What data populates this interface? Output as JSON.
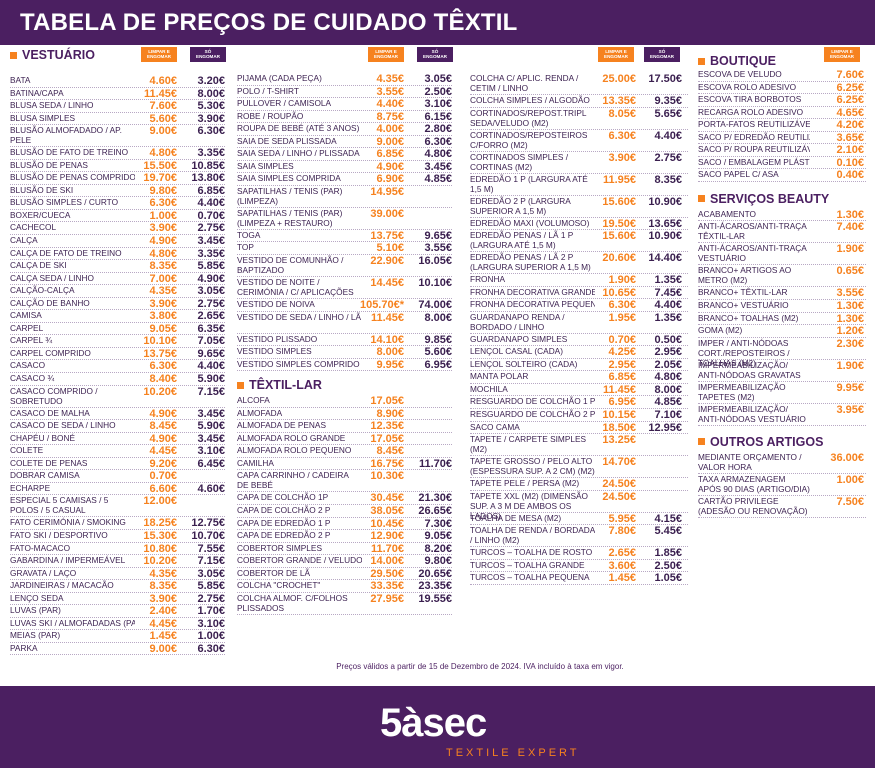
{
  "title": "TABELA DE PREÇOS DE CUIDADO TÊXTIL",
  "badge_clean": "LIMPAR E\nENGOMAR",
  "badge_iron": "SÓ\nENGOMAR",
  "validity": "Preços válidos a partir de 15 de Dezembro de 2024. IVA incluído à taxa em vigor.",
  "brand": {
    "logo": "5àsec",
    "tagline": "TEXTILE EXPERT"
  },
  "col1": {
    "section": "VESTUÁRIO",
    "items": [
      {
        "n": "BATA",
        "p1": "4.60€",
        "p2": "3.20€"
      },
      {
        "n": "BATINA/CAPA",
        "p1": "11.45€",
        "p2": "8.00€"
      },
      {
        "n": "BLUSA SEDA / LINHO",
        "p1": "7.60€",
        "p2": "5.30€"
      },
      {
        "n": "BLUSA SIMPLES",
        "p1": "5.60€",
        "p2": "3.90€"
      },
      {
        "n": "BLUSÃO ALMOFADADO / AP. PELE",
        "p1": "9.00€",
        "p2": "6.30€",
        "tall": true
      },
      {
        "n": "BLUSÃO DE FATO DE TREINO",
        "p1": "4.80€",
        "p2": "3.35€"
      },
      {
        "n": "BLUSÃO DE PENAS",
        "p1": "15.50€",
        "p2": "10.85€"
      },
      {
        "n": "BLUSÃO DE PENAS COMPRIDO",
        "p1": "19.70€",
        "p2": "13.80€"
      },
      {
        "n": "BLUSÃO DE SKI",
        "p1": "9.80€",
        "p2": "6.85€"
      },
      {
        "n": "BLUSÃO SIMPLES / CURTO",
        "p1": "6.30€",
        "p2": "4.40€"
      },
      {
        "n": "BOXER/CUECA",
        "p1": "1.00€",
        "p2": "0.70€"
      },
      {
        "n": "CACHECOL",
        "p1": "3.90€",
        "p2": "2.75€"
      },
      {
        "n": "CALÇA",
        "p1": "4.90€",
        "p2": "3.45€"
      },
      {
        "n": "CALÇA DE FATO DE TREINO",
        "p1": "4.80€",
        "p2": "3.35€"
      },
      {
        "n": "CALÇA DE SKI",
        "p1": "8.35€",
        "p2": "5.85€"
      },
      {
        "n": "CALÇA SEDA / LINHO",
        "p1": "7.00€",
        "p2": "4.90€"
      },
      {
        "n": "CALÇÃO-CALÇA",
        "p1": "4.35€",
        "p2": "3.05€"
      },
      {
        "n": "CALÇÃO DE BANHO",
        "p1": "3.90€",
        "p2": "2.75€"
      },
      {
        "n": "CAMISA",
        "p1": "3.80€",
        "p2": "2.65€"
      },
      {
        "n": "CARPEL",
        "p1": "9.05€",
        "p2": "6.35€"
      },
      {
        "n": "CARPEL ¾",
        "p1": "10.10€",
        "p2": "7.05€"
      },
      {
        "n": "CARPEL COMPRIDO",
        "p1": "13.75€",
        "p2": "9.65€"
      },
      {
        "n": "CASACO",
        "p1": "6.30€",
        "p2": "4.40€"
      },
      {
        "n": "CASACO ¾",
        "p1": "8.40€",
        "p2": "5.90€"
      },
      {
        "n": "CASACO COMPRIDO / SOBRETUDO",
        "p1": "10.20€",
        "p2": "7.15€",
        "tall": true
      },
      {
        "n": "CASACO DE MALHA",
        "p1": "4.90€",
        "p2": "3.45€"
      },
      {
        "n": "CASACO DE SEDA / LINHO",
        "p1": "8.45€",
        "p2": "5.90€"
      },
      {
        "n": "CHAPÉU / BONÉ",
        "p1": "4.90€",
        "p2": "3.45€"
      },
      {
        "n": "COLETE",
        "p1": "4.45€",
        "p2": "3.10€"
      },
      {
        "n": "COLETE DE PENAS",
        "p1": "9.20€",
        "p2": "6.45€"
      },
      {
        "n": "DOBRAR CAMISA",
        "p1": "0.70€",
        "p2": ""
      },
      {
        "n": "ECHARPE",
        "p1": "6.60€",
        "p2": "4.60€"
      },
      {
        "n": "ESPECIAL 5 CAMISAS / 5 POLOS / 5 CASUAL",
        "p1": "12.00€",
        "p2": "",
        "tall": true
      },
      {
        "n": "FATO CERIMÓNIA / SMOKING",
        "p1": "18.25€",
        "p2": "12.75€"
      },
      {
        "n": "FATO SKI / DESPORTIVO",
        "p1": "15.30€",
        "p2": "10.70€"
      },
      {
        "n": "FATO-MACACO",
        "p1": "10.80€",
        "p2": "7.55€"
      },
      {
        "n": "GABARDINA / IMPERMEÁVEL",
        "p1": "10.20€",
        "p2": "7.15€"
      },
      {
        "n": "GRAVATA / LAÇO",
        "p1": "4.35€",
        "p2": "3.05€"
      },
      {
        "n": "JARDINEIRAS / MACACÃO",
        "p1": "8.35€",
        "p2": "5.85€"
      },
      {
        "n": "LENÇO SEDA",
        "p1": "3.90€",
        "p2": "2.75€"
      },
      {
        "n": "LUVAS (par)",
        "p1": "2.40€",
        "p2": "1.70€"
      },
      {
        "n": "LUVAS SKI / ALMOFADADAS (par)",
        "p1": "4.45€",
        "p2": "3.10€"
      },
      {
        "n": "MEIAS (par)",
        "p1": "1.45€",
        "p2": "1.00€"
      },
      {
        "n": "PARKA",
        "p1": "9.00€",
        "p2": "6.30€"
      }
    ]
  },
  "col2": {
    "items": [
      {
        "n": "PIJAMA (cada peça)",
        "p1": "4.35€",
        "p2": "3.05€"
      },
      {
        "n": "POLO / T-SHIRT",
        "p1": "3.55€",
        "p2": "2.50€"
      },
      {
        "n": "PULLOVER / CAMISOLA",
        "p1": "4.40€",
        "p2": "3.10€"
      },
      {
        "n": "ROBE / ROUPÃO",
        "p1": "8.75€",
        "p2": "6.15€"
      },
      {
        "n": "ROUPA DE BEBÉ (até 3 anos)",
        "p1": "4.00€",
        "p2": "2.80€"
      },
      {
        "n": "SAIA DE SEDA PLISSADA",
        "p1": "9.00€",
        "p2": "6.30€"
      },
      {
        "n": "SAIA SEDA / LINHO / PLISSADA",
        "p1": "6.85€",
        "p2": "4.80€"
      },
      {
        "n": "SAIA SIMPLES",
        "p1": "4.90€",
        "p2": "3.45€"
      },
      {
        "n": "SAIA SIMPLES COMPRIDA",
        "p1": "6.90€",
        "p2": "4.85€"
      },
      {
        "n": "SAPATILHAS / TENIS (par) (limpeza)",
        "p1": "14.95€",
        "p2": "",
        "tall": true
      },
      {
        "n": "SAPATILHAS / TENIS (par) (limpeza + restauro)",
        "p1": "39.00€",
        "p2": "",
        "tall": true
      },
      {
        "n": "TOGA",
        "p1": "13.75€",
        "p2": "9.65€"
      },
      {
        "n": "TOP",
        "p1": "5.10€",
        "p2": "3.55€"
      },
      {
        "n": "VESTIDO DE COMUNHÃO / BAPTIZADO",
        "p1": "22.90€",
        "p2": "16.05€",
        "tall": true
      },
      {
        "n": "VESTIDO DE NOITE / CERIMÓNIA / C/ APLICAÇÕES",
        "p1": "14.45€",
        "p2": "10.10€",
        "tall": true
      },
      {
        "n": "VESTIDO DE NOIVA",
        "p1": "105.70€*",
        "p2": "74.00€"
      },
      {
        "n": "VESTIDO DE SEDA / LINHO / LÃ",
        "p1": "11.45€",
        "p2": "8.00€",
        "tall": true
      },
      {
        "n": "VESTIDO PLISSADO",
        "p1": "14.10€",
        "p2": "9.85€"
      },
      {
        "n": "VESTIDO SIMPLES",
        "p1": "8.00€",
        "p2": "5.60€"
      },
      {
        "n": "VESTIDO SIMPLES COMPRIDO",
        "p1": "9.95€",
        "p2": "6.95€"
      }
    ],
    "section2": "TÊXTIL-LAR",
    "items2": [
      {
        "n": "ALCOFA",
        "p1": "17.05€",
        "p2": ""
      },
      {
        "n": "ALMOFADA",
        "p1": "8.90€",
        "p2": ""
      },
      {
        "n": "ALMOFADA DE PENAS",
        "p1": "12.35€",
        "p2": ""
      },
      {
        "n": "ALMOFADA ROLO GRANDE",
        "p1": "17.05€",
        "p2": ""
      },
      {
        "n": "ALMOFADA ROLO PEQUENO",
        "p1": "8.45€",
        "p2": ""
      },
      {
        "n": "CAMILHA",
        "p1": "16.75€",
        "p2": "11.70€"
      },
      {
        "n": "CAPA CARRINHO / CADEIRA DE BEBÉ",
        "p1": "10.30€",
        "p2": "",
        "tall": true
      },
      {
        "n": "CAPA DE COLCHÃO 1P",
        "p1": "30.45€",
        "p2": "21.30€"
      },
      {
        "n": "CAPA DE COLCHÃO 2 P",
        "p1": "38.05€",
        "p2": "26.65€"
      },
      {
        "n": "CAPA DE EDREDÃO 1 P",
        "p1": "10.45€",
        "p2": "7.30€"
      },
      {
        "n": "CAPA DE EDREDÃO 2 P",
        "p1": "12.90€",
        "p2": "9.05€"
      },
      {
        "n": "COBERTOR SIMPLES",
        "p1": "11.70€",
        "p2": "8.20€"
      },
      {
        "n": "COBERTOR GRANDE / VELUDO",
        "p1": "14.00€",
        "p2": "9.80€"
      },
      {
        "n": "COBERTOR DE LÃ",
        "p1": "29.50€",
        "p2": "20.65€"
      },
      {
        "n": "COLCHA \"CROCHET\"",
        "p1": "33.35€",
        "p2": "23.35€"
      },
      {
        "n": "COLCHA ALMOF. C/FOLHOS PLISSADOS",
        "p1": "27.95€",
        "p2": "19.55€",
        "tall": true
      }
    ]
  },
  "col3": {
    "items": [
      {
        "n": "COLCHA C/ APLIC. RENDA / CETIM / LINHO",
        "p1": "25.00€",
        "p2": "17.50€",
        "tall": true
      },
      {
        "n": "COLCHA SIMPLES  / ALGODÃO",
        "p1": "13.35€",
        "p2": "9.35€"
      },
      {
        "n": "CORTINADOS/REPOST.TRIPL SEDA/VELUDO (m2)",
        "p1": "8.05€",
        "p2": "5.65€",
        "tall": true
      },
      {
        "n": "CORTINADOS/REPOSTEIROS C/FORRO (m2)",
        "p1": "6.30€",
        "p2": "4.40€",
        "tall": true
      },
      {
        "n": "CORTINADOS SIMPLES / CORTINAS (m2)",
        "p1": "3.90€",
        "p2": "2.75€",
        "tall": true
      },
      {
        "n": "EDREDÃO 1 P (largura até 1,5 m)",
        "p1": "11.95€",
        "p2": "8.35€",
        "tall": true
      },
      {
        "n": "EDREDÃO 2 P (largura superior a 1,5 m)",
        "p1": "15.60€",
        "p2": "10.90€",
        "tall": true
      },
      {
        "n": "EDREDÃO MAXI (volumoso)",
        "p1": "19.50€",
        "p2": "13.65€"
      },
      {
        "n": "EDREDÃO PENAS / LÃ 1 P (largura até 1,5 m)",
        "p1": "15.60€",
        "p2": "10.90€",
        "tall": true
      },
      {
        "n": "EDREDÃO PENAS / LÃ 2 P (largura superior a 1,5 m)",
        "p1": "20.60€",
        "p2": "14.40€",
        "tall": true
      },
      {
        "n": "FRONHA",
        "p1": "1.90€",
        "p2": "1.35€"
      },
      {
        "n": "FRONHA DECORATIVA GRANDE",
        "p1": "10.65€",
        "p2": "7.45€"
      },
      {
        "n": "FRONHA DECORATIVA PEQUENA",
        "p1": "6.30€",
        "p2": "4.40€"
      },
      {
        "n": "GUARDANAPO RENDA / BORDADO / LINHO",
        "p1": "1.95€",
        "p2": "1.35€",
        "tall": true
      },
      {
        "n": "GUARDANAPO SIMPLES",
        "p1": "0.70€",
        "p2": "0.50€"
      },
      {
        "n": "LENÇOL CASAL (cada)",
        "p1": "4.25€",
        "p2": "2.95€"
      },
      {
        "n": "LENÇOL SOLTEIRO (cada)",
        "p1": "2.95€",
        "p2": "2.05€"
      },
      {
        "n": "MANTA POLAR",
        "p1": "6.85€",
        "p2": "4.80€"
      },
      {
        "n": "MOCHILA",
        "p1": "11.45€",
        "p2": "8.00€"
      },
      {
        "n": "RESGUARDO DE COLCHÃO 1 P",
        "p1": "6.95€",
        "p2": "4.85€"
      },
      {
        "n": "RESGUARDO DE COLCHÃO 2 P",
        "p1": "10.15€",
        "p2": "7.10€"
      },
      {
        "n": "SACO CAMA",
        "p1": "18.50€",
        "p2": "12.95€"
      },
      {
        "n": "TAPETE / CARPETE SIMPLES (m2)",
        "p1": "13.25€",
        "p2": "",
        "tall": true
      },
      {
        "n": "TAPETE GROSSO / PELO ALTO (espessura sup. a 2 cm) (m2)",
        "p1": "14.70€",
        "p2": "",
        "tall": true
      },
      {
        "n": "TAPETE PELE / PERSA (m2)",
        "p1": "24.50€",
        "p2": ""
      },
      {
        "n": "TAPETE XXL (m2) (dimensão sup. a 3 m de ambos os lados)",
        "p1": "24.50€",
        "p2": "",
        "tall": true
      },
      {
        "n": "TOALHA DE MESA (m2)",
        "p1": "5.95€",
        "p2": "4.15€"
      },
      {
        "n": "TOALHA DE RENDA / BORDADA / LINHO (m2)",
        "p1": "7.80€",
        "p2": "5.45€",
        "tall": true
      },
      {
        "n": "TURCOS – TOALHA DE ROSTO",
        "p1": "2.65€",
        "p2": "1.85€"
      },
      {
        "n": "TURCOS – TOALHA GRANDE",
        "p1": "3.60€",
        "p2": "2.50€"
      },
      {
        "n": "TURCOS – TOALHA PEQUENA",
        "p1": "1.45€",
        "p2": "1.05€"
      }
    ]
  },
  "col4": {
    "section1": "BOUTIQUE",
    "items1": [
      {
        "n": "ESCOVA DE VELUDO",
        "p1": "7.60€"
      },
      {
        "n": "ESCOVA ROLO ADESIVO",
        "p1": "6.25€"
      },
      {
        "n": "ESCOVA TIRA BORBOTOS",
        "p1": "6.25€"
      },
      {
        "n": "RECARGA ROLO ADESIVO",
        "p1": "4.65€"
      },
      {
        "n": "PORTA-FATOS REUTILIZÁVEL",
        "p1": "4.20€"
      },
      {
        "n": "SACO P/ EDREDÃO REUTILIZÁVEL",
        "p1": "3.65€"
      },
      {
        "n": "SACO P/ ROUPA REUTILIZÁVEL",
        "p1": "2.10€"
      },
      {
        "n": "SACO / EMBALAGEM PLÁSTICO (cada)",
        "p1": "0.10€"
      },
      {
        "n": "SACO PAPEL C/ ASA",
        "p1": "0.40€"
      }
    ],
    "section2": "SERVIÇOS BEAUTY",
    "items2": [
      {
        "n": "ACABAMENTO",
        "p1": "1.30€"
      },
      {
        "n": "ANTI-ÁCAROS/ANTI-TRAÇA TÊXTIL-LAR",
        "p1": "7.40€",
        "tall": true
      },
      {
        "n": "ANTI-ÁCAROS/ANTI-TRAÇA VESTUÁRIO",
        "p1": "1.90€",
        "tall": true
      },
      {
        "n": "BRANCO+ ARTIGOS AO METRO (m2)",
        "p1": "0.65€",
        "tall": true
      },
      {
        "n": "BRANCO+ TÊXTIL-LAR",
        "p1": "3.55€"
      },
      {
        "n": "BRANCO+ VESTUÁRIO",
        "p1": "1.30€"
      },
      {
        "n": "BRANCO+ TOALHAS (m2)",
        "p1": "1.30€"
      },
      {
        "n": "GOMA (m2)",
        "p1": "1.20€"
      },
      {
        "n": "IMPER / ANTI-NÓDOAS CORT./REPOSTEIROS / TOALHAS (m2)",
        "p1": "2.30€",
        "tall": true
      },
      {
        "n": "IMPERMEABILIZAÇÃO/ ANTI-NÓDOAS GRAVATAS",
        "p1": "1.90€",
        "tall": true
      },
      {
        "n": "IMPERMEABILIZAÇÃO TAPETES (m2)",
        "p1": "9.95€",
        "tall": true
      },
      {
        "n": "IMPERMEABILIZAÇÃO/ ANTI-NÓDOAS VESTUÁRIO",
        "p1": "3.95€",
        "tall": true
      }
    ],
    "section3": "OUTROS ARTIGOS",
    "items3": [
      {
        "n": "MEDIANTE ORÇAMENTO / VALOR HORA",
        "p1": "36.00€",
        "tall": true
      },
      {
        "n": "TAXA ARMAZENAGEM APÓS 90 DIAS (artigo/dia)",
        "p1": "1.00€",
        "tall": true
      },
      {
        "n": "CARTÃO PRIVILEGE (adesão ou renovação)",
        "p1": "7.50€",
        "tall": true
      }
    ]
  }
}
